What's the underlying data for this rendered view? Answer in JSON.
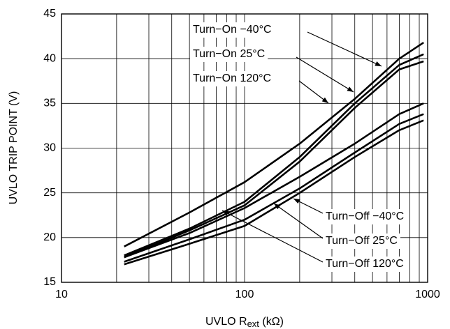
{
  "chart_data": {
    "type": "line",
    "y_label": "UVLO TRIP POINT (V)",
    "x_label": {
      "main": "UVLO  R",
      "subscript": "ext",
      "suffix": " (kΩ)"
    },
    "log_x": true,
    "grid": true,
    "xlim": [
      10,
      1000
    ],
    "xticks": [
      10,
      100,
      1000
    ],
    "x_minor_grid": [
      20,
      30,
      40,
      50,
      60,
      70,
      80,
      90,
      200,
      300,
      400,
      500,
      600,
      700,
      800,
      900
    ],
    "ylim": [
      15,
      45
    ],
    "yticks": [
      15,
      20,
      25,
      30,
      35,
      40,
      45
    ],
    "x": [
      22,
      50,
      100,
      200,
      400,
      700,
      950
    ],
    "series": [
      {
        "name": "Turn−On −40°C",
        "color": "#000000",
        "values": [
          19.0,
          22.8,
          26.2,
          30.5,
          35.5,
          40.0,
          41.8
        ]
      },
      {
        "name": "Turn−On 25°C",
        "color": "#000000",
        "values": [
          18.0,
          21.0,
          24.0,
          29.0,
          35.0,
          39.3,
          40.5
        ]
      },
      {
        "name": "Turn−On 120°C",
        "color": "#000000",
        "values": [
          17.8,
          20.8,
          23.6,
          28.5,
          34.5,
          38.8,
          39.7
        ]
      },
      {
        "name": "Turn−Off −40°C",
        "color": "#000000",
        "values": [
          17.8,
          20.5,
          23.3,
          26.8,
          30.5,
          33.8,
          35.0
        ]
      },
      {
        "name": "Turn−Off 25°C",
        "color": "#000000",
        "values": [
          17.3,
          19.8,
          22.0,
          25.5,
          29.5,
          32.7,
          33.8
        ]
      },
      {
        "name": "Turn−Off 120°C",
        "color": "#000000",
        "values": [
          17.0,
          19.3,
          21.3,
          25.0,
          29.0,
          32.0,
          33.1
        ]
      }
    ]
  }
}
